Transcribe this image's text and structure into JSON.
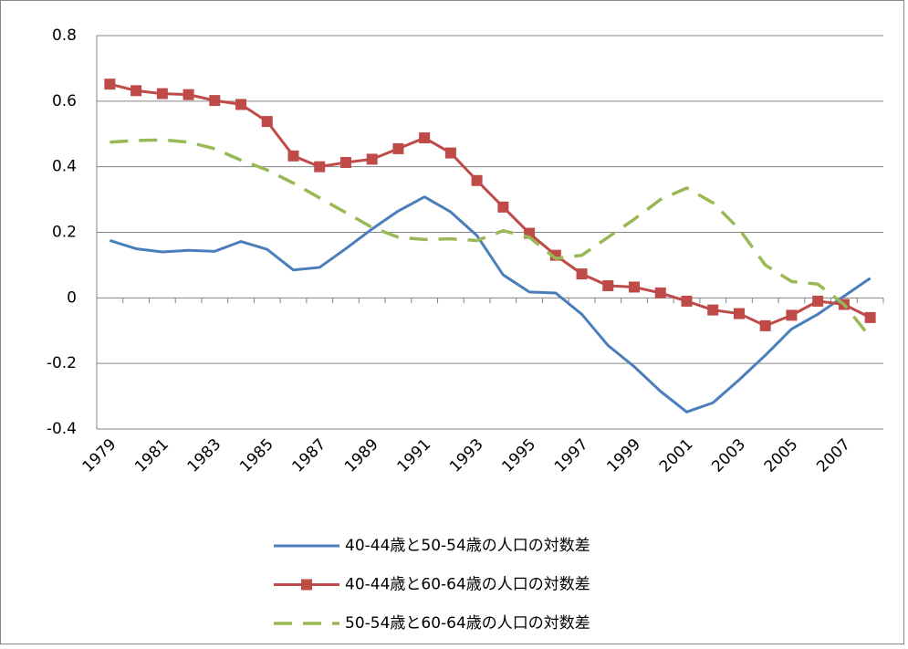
{
  "chart_data": {
    "type": "line",
    "categories": [
      "1979",
      null,
      "1981",
      null,
      "1983",
      null,
      "1985",
      null,
      "1987",
      null,
      "1989",
      null,
      "1991",
      null,
      "1993",
      null,
      "1995",
      null,
      "1997",
      null,
      "1999",
      null,
      "2001",
      null,
      "2003",
      null,
      "2005",
      null,
      "2007",
      null
    ],
    "series": [
      {
        "name": "40-44歳と50-54歳の人口の対数差",
        "color": "#4a7ebb",
        "marker": "none",
        "dashed": false,
        "values": [
          0.175,
          0.15,
          0.14,
          0.145,
          0.142,
          0.172,
          0.148,
          0.085,
          0.093,
          0.15,
          0.21,
          0.265,
          0.308,
          0.262,
          0.19,
          0.07,
          0.018,
          0.015,
          -0.05,
          -0.145,
          -0.21,
          -0.285,
          -0.348,
          -0.32,
          -0.25,
          -0.175,
          -0.095,
          -0.05,
          0.005,
          0.06
        ]
      },
      {
        "name": "40-44歳と60-64歳の人口の対数差",
        "color": "#be4b48",
        "marker": "square",
        "dashed": false,
        "values": [
          0.652,
          0.632,
          0.623,
          0.62,
          0.602,
          0.59,
          0.538,
          0.433,
          0.4,
          0.413,
          0.423,
          0.455,
          0.488,
          0.442,
          0.358,
          0.277,
          0.197,
          0.13,
          0.073,
          0.037,
          0.033,
          0.015,
          -0.01,
          -0.037,
          -0.048,
          -0.085,
          -0.053,
          -0.01,
          -0.02,
          -0.06
        ]
      },
      {
        "name": "50-54歳と60-64歳の人口の対数差",
        "color": "#98b954",
        "marker": "none",
        "dashed": true,
        "values": [
          0.475,
          0.48,
          0.482,
          0.475,
          0.455,
          0.42,
          0.39,
          0.35,
          0.305,
          0.26,
          0.215,
          0.185,
          0.178,
          0.18,
          0.175,
          0.205,
          0.185,
          0.12,
          0.13,
          0.185,
          0.24,
          0.3,
          0.335,
          0.29,
          0.21,
          0.1,
          0.05,
          0.042,
          -0.02,
          -0.12
        ]
      }
    ],
    "ylim": [
      -0.4,
      0.8
    ],
    "yticks": [
      -0.4,
      -0.2,
      0,
      0.2,
      0.4,
      0.6,
      0.8
    ],
    "grid": true,
    "legend": "bottom"
  }
}
